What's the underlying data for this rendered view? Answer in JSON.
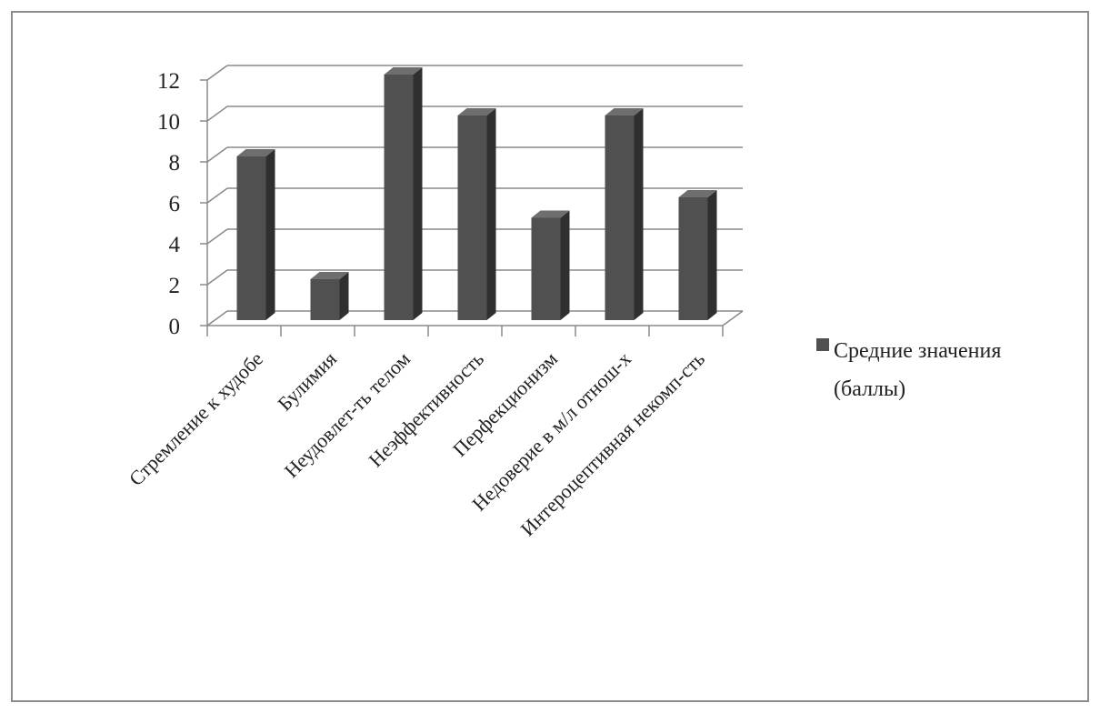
{
  "chart_data": {
    "type": "bar",
    "style": "3d-column",
    "categories": [
      "Стремление к худобе",
      "Булимия",
      "Неудовлет-ть телом",
      "Неэффективность",
      "Перфекционизм",
      "Недоверие в м/л отнош-х",
      "Интероцептивная  некомп-сть"
    ],
    "series": [
      {
        "name": "Средние значения (баллы)",
        "values": [
          8,
          2,
          12,
          10,
          5,
          10,
          6
        ]
      }
    ],
    "legend_lines": [
      "Средние значения",
      "(баллы)"
    ],
    "yticks": [
      "0",
      "2",
      "4",
      "6",
      "8",
      "10",
      "12"
    ],
    "ylim": [
      0,
      12
    ],
    "grid": true,
    "legend_position": "right",
    "bar_color": "#505050",
    "title": "",
    "xlabel": "",
    "ylabel": ""
  }
}
